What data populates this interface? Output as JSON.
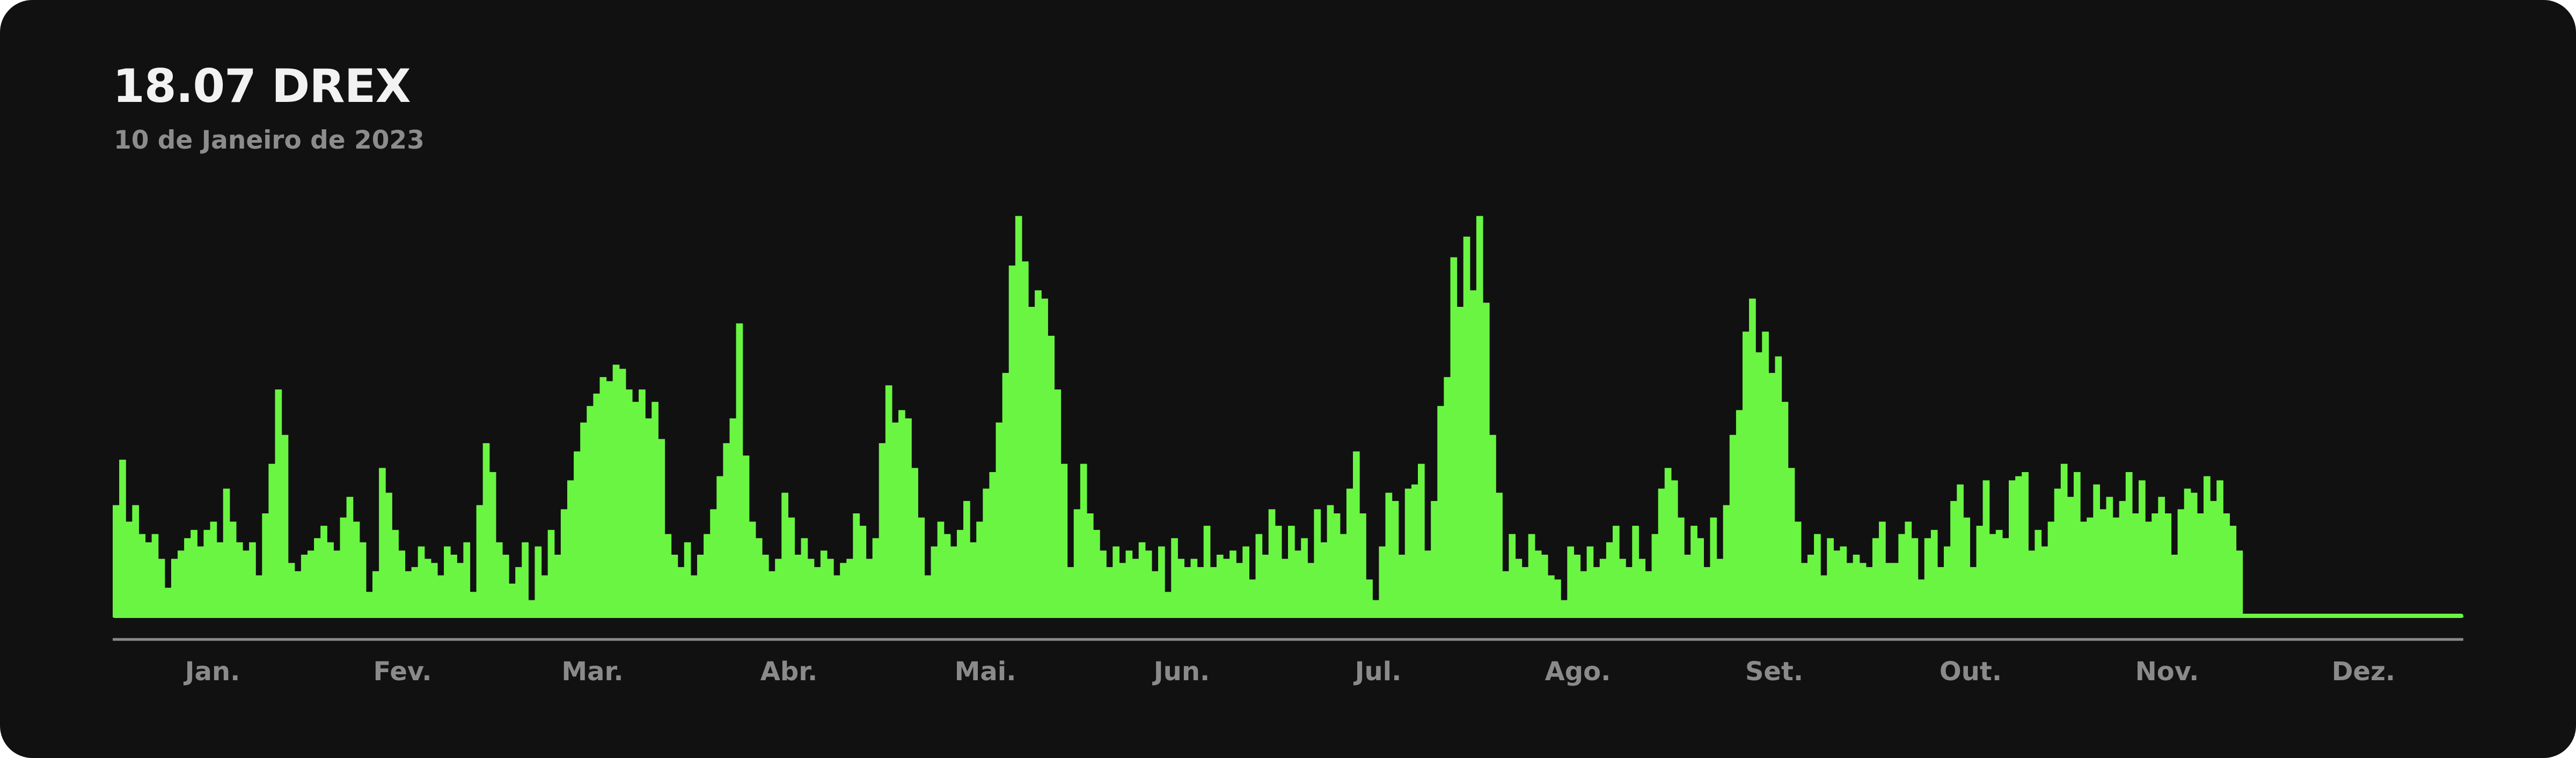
{
  "header": {
    "title": "18.07 DREX",
    "subtitle": "10 de Janeiro de 2023"
  },
  "colors": {
    "background": "#111111",
    "bar": "#6af542",
    "axis": "#8a8a8a",
    "title": "#f2f2f2",
    "subtitle": "#8c8c8c"
  },
  "chart_data": {
    "type": "bar",
    "title": "18.07 DREX",
    "subtitle": "10 de Janeiro de 2023",
    "xlabel": "",
    "ylabel": "",
    "grid": false,
    "legend": "none",
    "ylim": [
      0,
      100
    ],
    "x_ticks": [
      "Jan.",
      "Fev.",
      "Mar.",
      "Abr.",
      "Mai.",
      "Jun.",
      "Jul.",
      "Ago.",
      "Set.",
      "Out.",
      "Nov.",
      "Dez."
    ],
    "days_in_year": 365,
    "values": [
      27,
      38,
      23,
      27,
      20,
      18,
      20,
      14,
      7,
      14,
      16,
      19,
      21,
      17,
      21,
      23,
      18,
      31,
      23,
      18,
      16,
      18,
      10,
      25,
      37,
      55,
      44,
      13,
      11,
      15,
      16,
      19,
      22,
      18,
      16,
      24,
      29,
      23,
      18,
      6,
      11,
      36,
      30,
      21,
      16,
      11,
      12,
      17,
      14,
      13,
      10,
      17,
      15,
      13,
      18,
      6,
      27,
      42,
      35,
      18,
      15,
      8,
      12,
      18,
      4,
      17,
      10,
      21,
      15,
      26,
      33,
      40,
      47,
      51,
      54,
      58,
      57,
      61,
      60,
      55,
      52,
      55,
      48,
      52,
      43,
      20,
      15,
      12,
      18,
      10,
      15,
      20,
      26,
      34,
      42,
      48,
      71,
      39,
      23,
      19,
      15,
      11,
      14,
      30,
      24,
      15,
      19,
      14,
      12,
      16,
      14,
      10,
      13,
      14,
      25,
      22,
      14,
      19,
      42,
      56,
      47,
      50,
      48,
      36,
      24,
      10,
      17,
      23,
      20,
      17,
      21,
      28,
      18,
      23,
      31,
      35,
      47,
      59,
      85,
      97,
      86,
      75,
      79,
      77,
      68,
      55,
      37,
      12,
      26,
      37,
      25,
      21,
      16,
      12,
      17,
      13,
      16,
      14,
      18,
      16,
      11,
      17,
      6,
      19,
      14,
      12,
      14,
      12,
      22,
      12,
      15,
      14,
      16,
      13,
      17,
      9,
      20,
      15,
      26,
      22,
      14,
      22,
      16,
      19,
      13,
      26,
      18,
      27,
      25,
      20,
      31,
      40,
      25,
      9,
      4,
      17,
      30,
      28,
      15,
      31,
      32,
      37,
      16,
      28,
      51,
      58,
      87,
      75,
      92,
      79,
      97,
      76,
      44,
      30,
      11,
      20,
      14,
      12,
      20,
      16,
      15,
      10,
      9,
      4,
      17,
      15,
      11,
      17,
      12,
      14,
      18,
      22,
      14,
      12,
      22,
      14,
      11,
      20,
      31,
      36,
      33,
      24,
      15,
      22,
      19,
      12,
      24,
      14,
      27,
      44,
      50,
      69,
      77,
      64,
      69,
      59,
      63,
      52,
      36,
      23,
      13,
      15,
      20,
      10,
      19,
      16,
      17,
      13,
      15,
      13,
      12,
      19,
      23,
      13,
      13,
      20,
      23,
      19,
      9,
      19,
      21,
      12,
      17,
      28,
      32,
      24,
      12,
      22,
      33,
      20,
      21,
      19,
      33,
      34,
      35,
      16,
      21,
      17,
      23,
      31,
      37,
      29,
      35,
      23,
      24,
      32,
      26,
      29,
      24,
      28,
      35,
      25,
      33,
      23,
      25,
      29,
      25,
      15,
      26,
      31,
      30,
      25,
      34,
      28,
      33,
      25,
      22,
      16,
      0,
      0,
      0,
      0,
      0,
      0,
      0,
      0,
      0,
      0,
      0,
      0,
      0,
      0,
      0,
      0,
      0,
      0,
      0,
      0,
      0,
      0,
      0,
      0,
      0,
      0,
      0,
      0,
      0,
      0,
      0,
      0,
      0,
      0
    ]
  }
}
